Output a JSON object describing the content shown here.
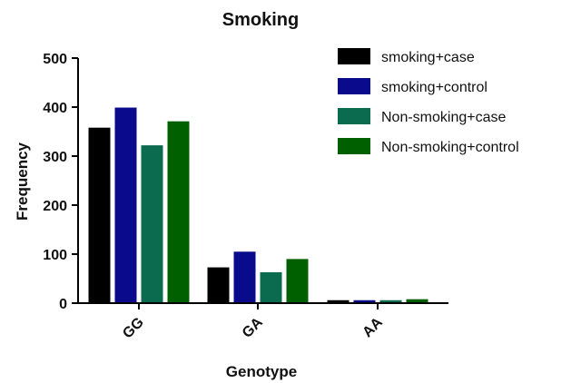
{
  "chart_data": {
    "type": "bar",
    "title": "Smoking",
    "xlabel": "Genotype",
    "ylabel": "Frequency",
    "ylim": [
      0,
      500
    ],
    "yticks": [
      0,
      100,
      200,
      300,
      400,
      500
    ],
    "categories": [
      "GG",
      "GA",
      "AA"
    ],
    "series": [
      {
        "name": "smoking+case",
        "color": "#000000",
        "values": [
          358,
          73,
          6
        ]
      },
      {
        "name": "smoking+control",
        "color": "#0a0a8c",
        "values": [
          399,
          105,
          6
        ]
      },
      {
        "name": "Non-smoking+case",
        "color": "#0b6b4f",
        "values": [
          322,
          63,
          6
        ]
      },
      {
        "name": "Non-smoking+control",
        "color": "#006000",
        "values": [
          371,
          90,
          8
        ]
      }
    ],
    "legend": "top-right"
  }
}
